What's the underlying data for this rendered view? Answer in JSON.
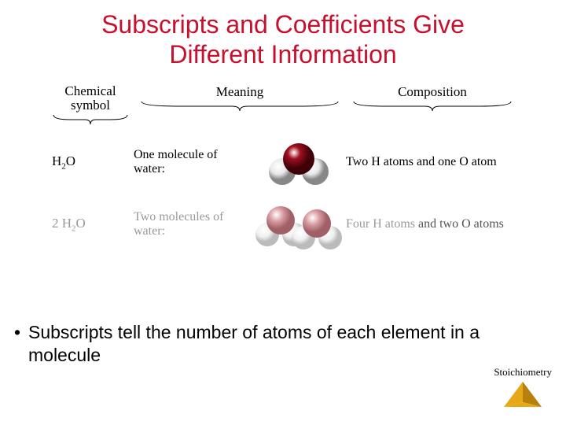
{
  "title_color": "#c8102e",
  "title_line1": "Subscripts and Coefficients Give",
  "title_line2": "Different Information",
  "headers": {
    "symbol": "Chemical symbol",
    "meaning": "Meaning",
    "composition": "Composition"
  },
  "row1": {
    "symbol_html": "H<sub>2</sub>O",
    "meaning": "One molecule of water:",
    "composition": "Two H atoms and one O atom",
    "oxygen_color": "#a01020",
    "hydrogen_color": "#e8e8e8"
  },
  "row2": {
    "symbol_html": "2 H<sub>2</sub>O",
    "meaning": "Two molecules of water:",
    "composition_faded": "Four H atoms ",
    "composition_strong": "and two O atoms",
    "oxygen_color": "#d89aa0",
    "hydrogen_color": "#f0f0f0"
  },
  "bullet_text": "Subscripts tell the number of atoms of each element in a molecule",
  "footer_label": "Stoichiometry",
  "pyramid_fill": "#e6a817",
  "pyramid_shade": "#b77f0e"
}
